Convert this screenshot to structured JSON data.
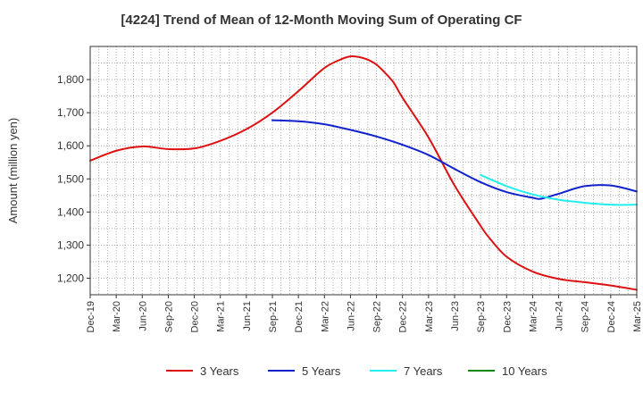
{
  "chart_data": {
    "type": "line",
    "title": "[4224]  Trend of Mean of 12-Month Moving Sum of Operating CF",
    "xlabel": "",
    "ylabel": "Amount (million yen)",
    "ylim": [
      1150,
      1900
    ],
    "y_ticks": [
      1200,
      1300,
      1400,
      1500,
      1600,
      1700,
      1800
    ],
    "y_tick_labels": [
      "1,200",
      "1,300",
      "1,400",
      "1,500",
      "1,600",
      "1,700",
      "1,800"
    ],
    "x_tick_labels": [
      "Dec-19",
      "Mar-20",
      "Jun-20",
      "Sep-20",
      "Dec-20",
      "Mar-21",
      "Jun-21",
      "Sep-21",
      "Dec-21",
      "Mar-22",
      "Jun-22",
      "Sep-22",
      "Dec-22",
      "Mar-23",
      "Jun-23",
      "Sep-23",
      "Dec-23",
      "Mar-24",
      "Jun-24",
      "Sep-24",
      "Dec-24",
      "Mar-25"
    ],
    "x_unit": "months since Dec-19",
    "x_max": 63,
    "grid": true,
    "legend_position": "bottom",
    "series": [
      {
        "name": "3 Years",
        "color": "#dd1111",
        "x": [
          0,
          3,
          6,
          9,
          12,
          15,
          18,
          21,
          24,
          27,
          29,
          30,
          31,
          32,
          33,
          34,
          35,
          36,
          39,
          42,
          45,
          46,
          48,
          51,
          54,
          57,
          60,
          63
        ],
        "y": [
          1555,
          1585,
          1598,
          1590,
          1592,
          1615,
          1650,
          1700,
          1765,
          1835,
          1862,
          1870,
          1868,
          1860,
          1845,
          1820,
          1790,
          1745,
          1625,
          1480,
          1358,
          1322,
          1265,
          1220,
          1198,
          1188,
          1178,
          1165
        ]
      },
      {
        "name": "5 Years",
        "color": "#1122cc",
        "x": [
          21,
          24,
          27,
          30,
          33,
          36,
          39,
          42,
          45,
          48,
          51,
          52,
          54,
          57,
          60,
          63
        ],
        "y": [
          1677,
          1674,
          1665,
          1648,
          1628,
          1603,
          1572,
          1530,
          1490,
          1460,
          1443,
          1440,
          1455,
          1478,
          1480,
          1462
        ]
      },
      {
        "name": "7 Years",
        "color": "#22eeee",
        "x": [
          45,
          48,
          51,
          54,
          57,
          60,
          63
        ],
        "y": [
          1512,
          1478,
          1453,
          1437,
          1428,
          1422,
          1422
        ]
      },
      {
        "name": "10 Years",
        "color": "#118811",
        "x": [],
        "y": []
      }
    ]
  }
}
